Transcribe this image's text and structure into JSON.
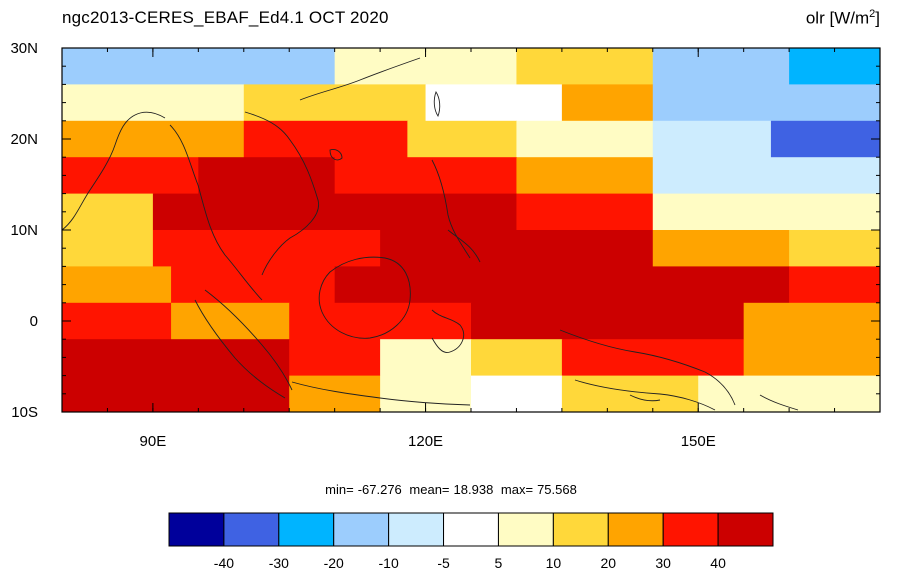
{
  "title": {
    "left": "ngc2013-CERES_EBAF_Ed4.1  OCT 2020",
    "variable": "olr",
    "units_prefix": "[W/m",
    "units_sup": "2",
    "units_suffix": "]"
  },
  "stats": {
    "min_label": "min=",
    "min": "-67.276",
    "mean_label": "mean=",
    "mean": "18.938",
    "max_label": "max=",
    "max": "75.568"
  },
  "chart_data": {
    "type": "heatmap",
    "projection": "cylindrical equidistant",
    "lon_range": [
      80,
      170
    ],
    "lat_range": [
      -10,
      30
    ],
    "x_ticks": [
      {
        "value": 90,
        "label": "90E"
      },
      {
        "value": 120,
        "label": "120E"
      },
      {
        "value": 150,
        "label": "150E"
      }
    ],
    "y_ticks": [
      {
        "value": 30,
        "label": "30N"
      },
      {
        "value": 20,
        "label": "20N"
      },
      {
        "value": 10,
        "label": "10N"
      },
      {
        "value": 0,
        "label": "0"
      },
      {
        "value": -10,
        "label": "10S"
      }
    ],
    "levels": [
      -40,
      -30,
      -20,
      -10,
      -5,
      5,
      10,
      20,
      30,
      40
    ],
    "level_labels": [
      "-40",
      "-30",
      "-20",
      "-10",
      "-5",
      "5",
      "10",
      "20",
      "30",
      "40"
    ],
    "colors": [
      "#00009b",
      "#3f62e3",
      "#00b4ff",
      "#9ccdfd",
      "#cdecfe",
      "#ffffff",
      "#fffcc4",
      "#ffd83a",
      "#ffa400",
      "#ff1400",
      "#cc0000"
    ],
    "coastlines": true,
    "field_description_bins": [
      {
        "lat": 28,
        "lons": [
          [
            80,
            110,
            3
          ],
          [
            110,
            130,
            6
          ],
          [
            130,
            145,
            7
          ],
          [
            145,
            160,
            3
          ],
          [
            160,
            170,
            2
          ]
        ]
      },
      {
        "lat": 24,
        "lons": [
          [
            80,
            100,
            6
          ],
          [
            100,
            120,
            7
          ],
          [
            120,
            135,
            5
          ],
          [
            135,
            145,
            8
          ],
          [
            145,
            170,
            3
          ]
        ]
      },
      {
        "lat": 20,
        "lons": [
          [
            80,
            100,
            8
          ],
          [
            100,
            118,
            9
          ],
          [
            118,
            130,
            7
          ],
          [
            130,
            145,
            6
          ],
          [
            145,
            158,
            4
          ],
          [
            158,
            170,
            1
          ]
        ]
      },
      {
        "lat": 16,
        "lons": [
          [
            80,
            95,
            9
          ],
          [
            95,
            110,
            10
          ],
          [
            110,
            130,
            9
          ],
          [
            130,
            145,
            8
          ],
          [
            145,
            170,
            4
          ]
        ]
      },
      {
        "lat": 12,
        "lons": [
          [
            80,
            90,
            7
          ],
          [
            90,
            130,
            10
          ],
          [
            130,
            145,
            9
          ],
          [
            145,
            170,
            6
          ]
        ]
      },
      {
        "lat": 8,
        "lons": [
          [
            80,
            90,
            7
          ],
          [
            90,
            115,
            9
          ],
          [
            115,
            145,
            10
          ],
          [
            145,
            160,
            8
          ],
          [
            160,
            170,
            7
          ]
        ]
      },
      {
        "lat": 4,
        "lons": [
          [
            80,
            92,
            8
          ],
          [
            92,
            110,
            9
          ],
          [
            110,
            160,
            10
          ],
          [
            160,
            170,
            9
          ]
        ]
      },
      {
        "lat": 0,
        "lons": [
          [
            80,
            92,
            9
          ],
          [
            92,
            105,
            8
          ],
          [
            105,
            125,
            9
          ],
          [
            125,
            155,
            10
          ],
          [
            155,
            170,
            8
          ]
        ]
      },
      {
        "lat": -4,
        "lons": [
          [
            80,
            105,
            10
          ],
          [
            105,
            115,
            9
          ],
          [
            115,
            125,
            6
          ],
          [
            125,
            135,
            7
          ],
          [
            135,
            155,
            9
          ],
          [
            155,
            170,
            8
          ]
        ]
      },
      {
        "lat": -8,
        "lons": [
          [
            80,
            105,
            10
          ],
          [
            105,
            115,
            8
          ],
          [
            115,
            125,
            6
          ],
          [
            125,
            135,
            5
          ],
          [
            135,
            150,
            7
          ],
          [
            150,
            170,
            6
          ]
        ]
      }
    ]
  }
}
